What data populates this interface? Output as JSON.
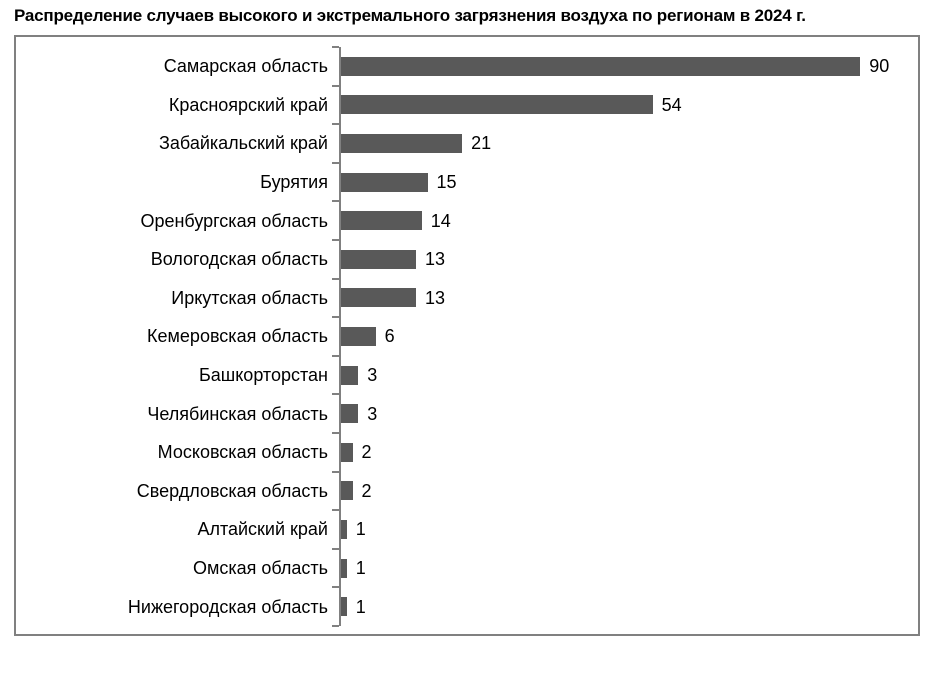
{
  "title": "Распределение случаев высокого и экстремального загрязнения воздуха по регионам в 2024 г.",
  "colors": {
    "bar": "#595959",
    "axis": "#808080",
    "text": "#000000",
    "background": "#ffffff"
  },
  "chart_data": {
    "type": "bar",
    "orientation": "horizontal",
    "title": "Распределение случаев высокого и экстремального загрязнения воздуха по регионам в 2024 г.",
    "categories": [
      "Самарская область",
      "Красноярский край",
      "Забайкальский край",
      "Бурятия",
      "Оренбургская область",
      "Вологодская область",
      "Иркутская область",
      "Кемеровская область",
      "Башкорторстан",
      "Челябинская область",
      "Московская область",
      "Свердловская область",
      "Алтайский край",
      "Омская область",
      "Нижегородская область"
    ],
    "values": [
      90,
      54,
      21,
      15,
      14,
      13,
      13,
      6,
      3,
      3,
      2,
      2,
      1,
      1,
      1
    ],
    "xlabel": "",
    "ylabel": "",
    "xlim": [
      0,
      100
    ],
    "grid": false,
    "legend": false,
    "value_labels": true,
    "bar_color": "#595959",
    "axis_color": "#808080"
  }
}
